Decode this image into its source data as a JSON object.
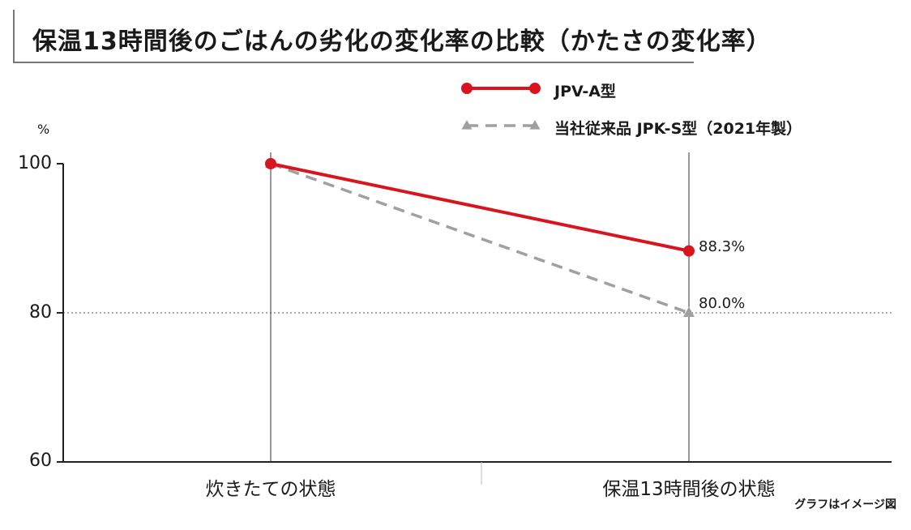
{
  "title": "保温13時間後のごはんの劣化の変化率の比較（かたさの変化率）",
  "note": "グラフはイメージ図",
  "colors": {
    "series_a": "#d9141e",
    "series_b": "#a0a0a0",
    "axis": "#222222"
  },
  "chart_data": {
    "type": "line",
    "categories": [
      "炊きたての状態",
      "保温13時間後の状態"
    ],
    "ylabel": "%",
    "ylim": [
      60,
      100
    ],
    "yticks": [
      "100",
      "80",
      "60"
    ],
    "grid": "dotted line at 80",
    "legend_position": "top-right",
    "series": [
      {
        "name": "JPV-A型",
        "values": [
          100,
          88.3
        ],
        "style": "solid",
        "marker": "circle",
        "end_label": "88.3%"
      },
      {
        "name": "当社従来品 JPK-S型（2021年製）",
        "values": [
          100,
          80.0
        ],
        "style": "dashed",
        "marker": "triangle",
        "end_label": "80.0%"
      }
    ]
  }
}
